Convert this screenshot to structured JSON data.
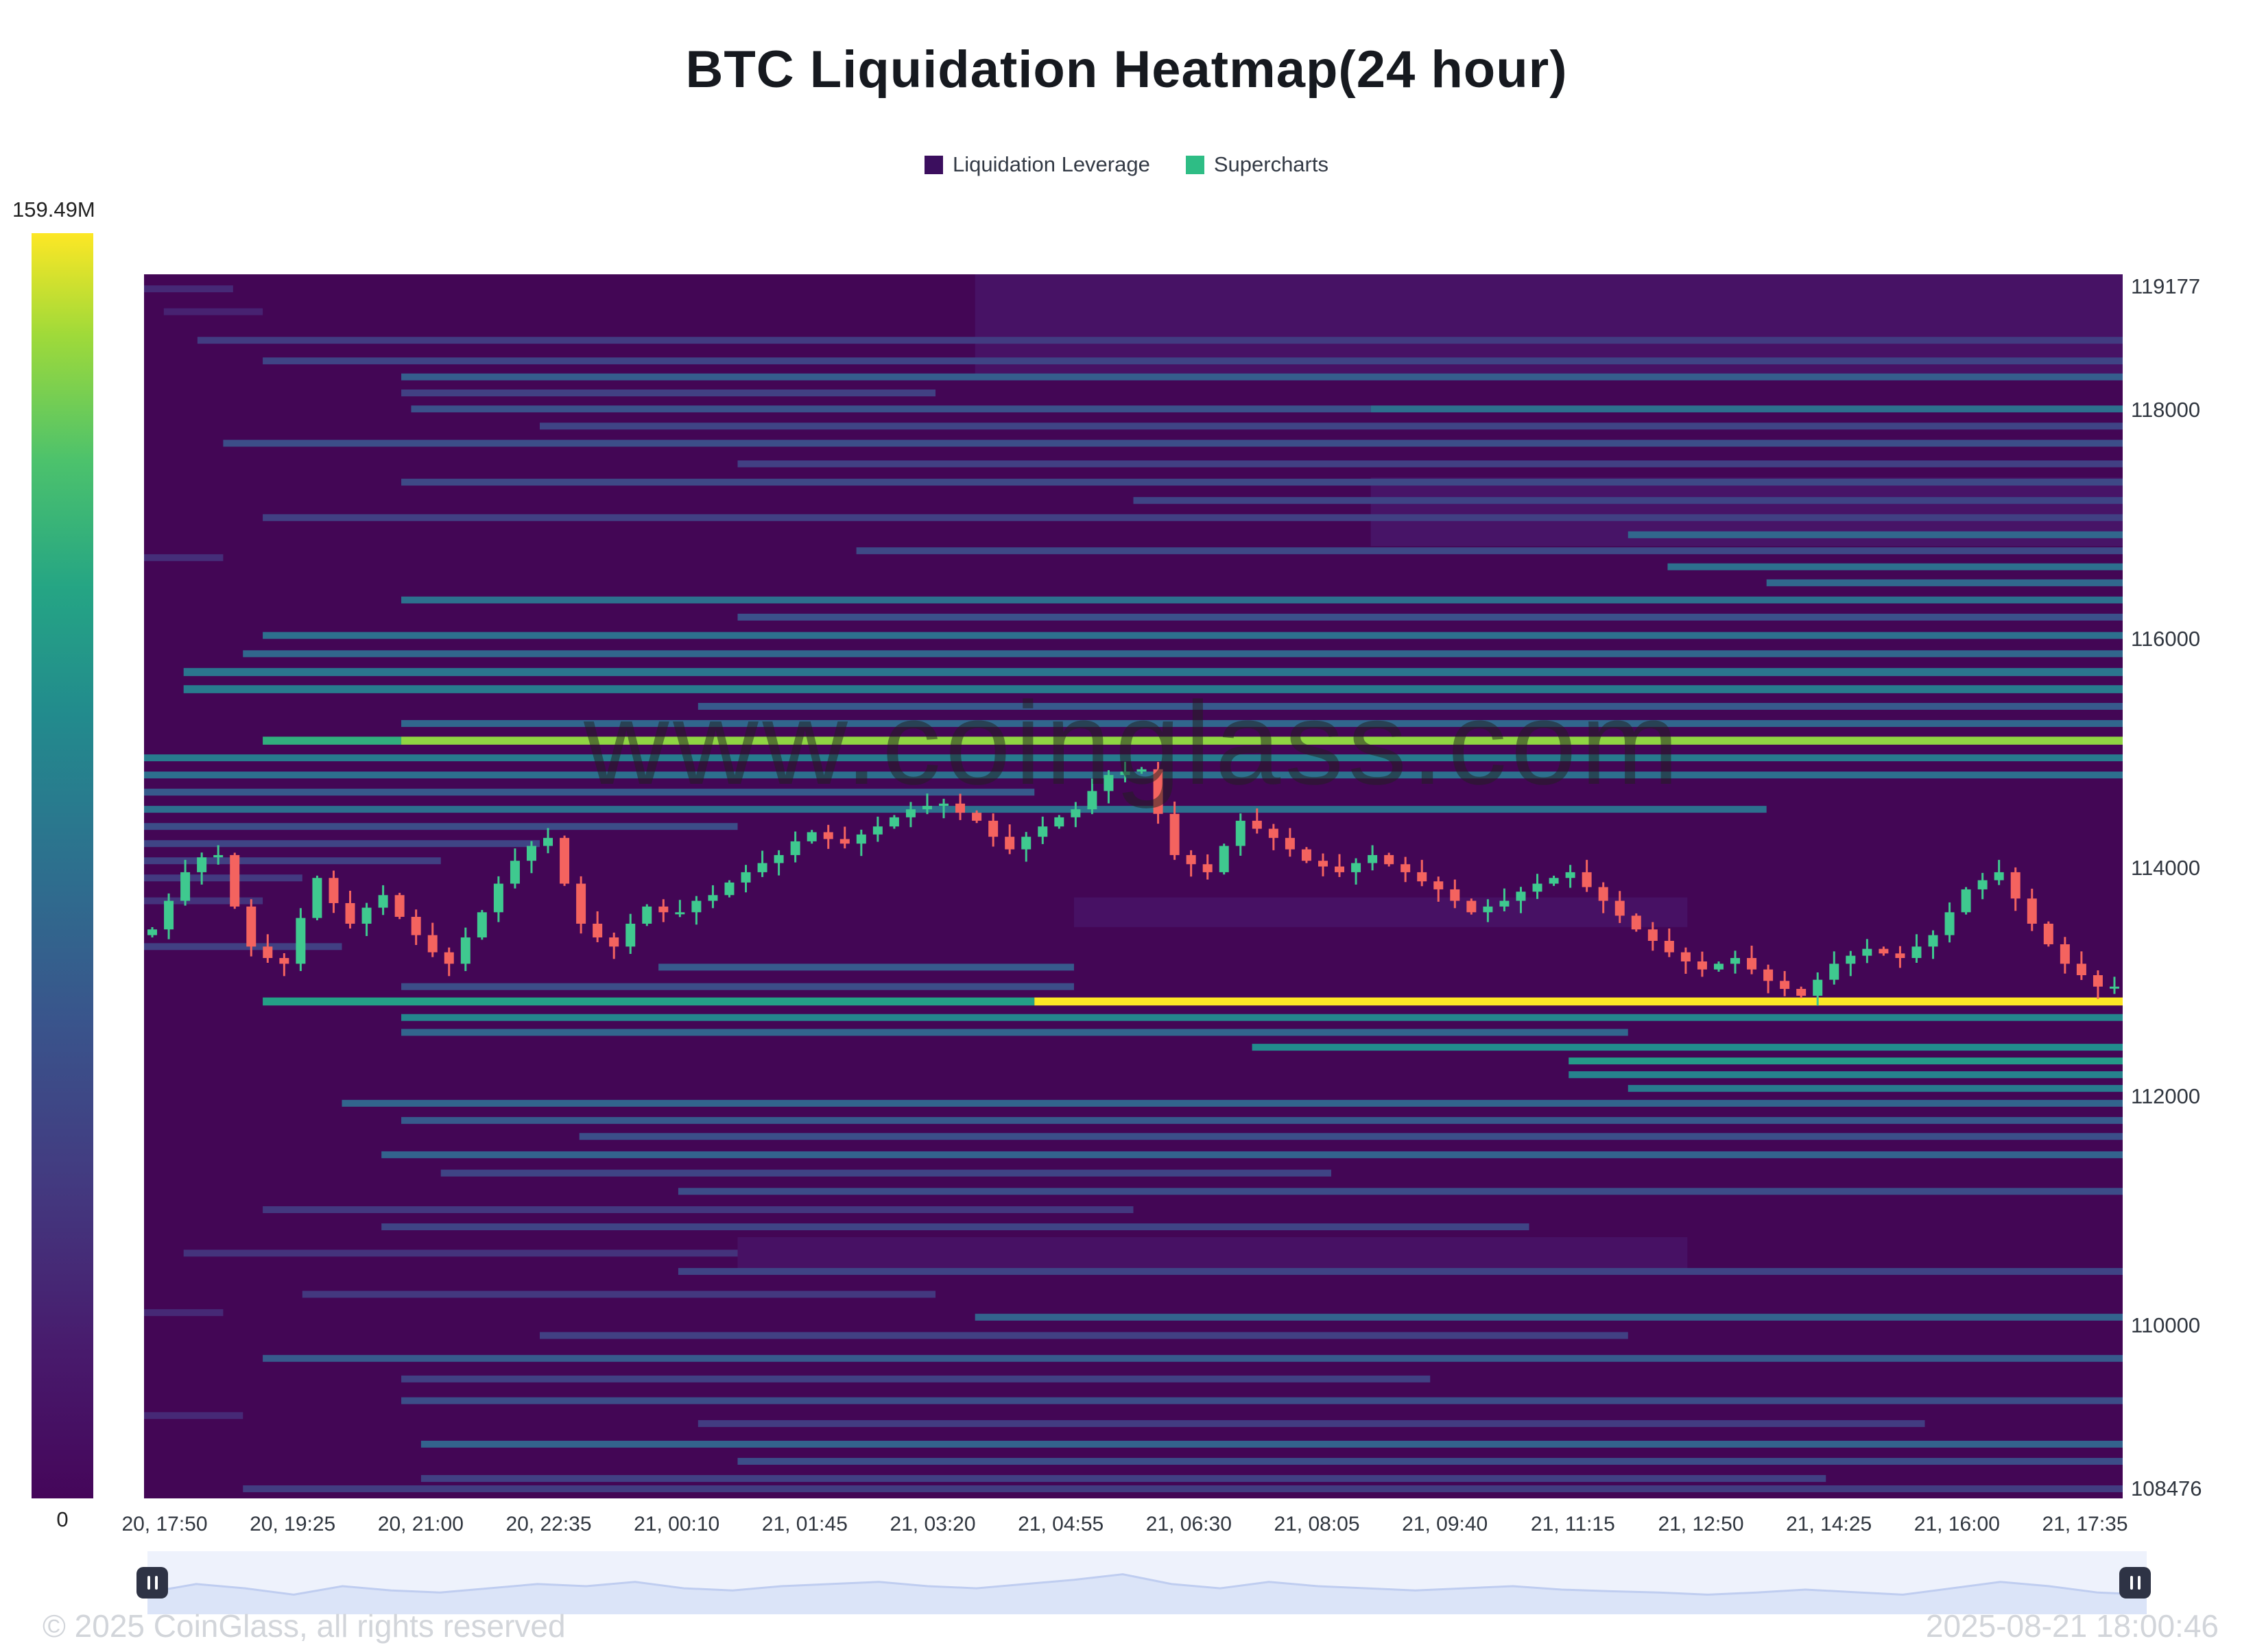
{
  "title": "BTC Liquidation Heatmap(24 hour)",
  "legend": [
    {
      "label": "Liquidation Leverage",
      "color": "#3b0e5e"
    },
    {
      "label": "Supercharts",
      "color": "#2ebd85"
    }
  ],
  "colorbar": {
    "max_label": "159.49M",
    "min_label": "0"
  },
  "watermark": "www.coinglass.com",
  "footer": {
    "copyright": "© 2025 CoinGlass, all rights reserved",
    "timestamp": "2025-08-21 18:00:46"
  },
  "chart_data": {
    "type": "heatmap",
    "title": "BTC Liquidation Heatmap(24 hour)",
    "bg_color": "#430655",
    "price_axis": {
      "min": 108476,
      "max": 119177,
      "ticks": [
        119177,
        118000,
        116000,
        114000,
        112000,
        110000,
        108476
      ]
    },
    "time_ticks": [
      "20, 17:50",
      "20, 19:25",
      "20, 21:00",
      "20, 22:35",
      "21, 00:10",
      "21, 01:45",
      "21, 03:20",
      "21, 04:55",
      "21, 06:30",
      "21, 08:05",
      "21, 09:40",
      "21, 11:15",
      "21, 12:50",
      "21, 14:25",
      "21, 16:00",
      "21, 17:35"
    ],
    "colormap": [
      [
        0,
        "#45065a"
      ],
      [
        0.12,
        "#481b6d"
      ],
      [
        0.25,
        "#433a80"
      ],
      [
        0.38,
        "#39558c"
      ],
      [
        0.5,
        "#2d708e"
      ],
      [
        0.62,
        "#228b8d"
      ],
      [
        0.72,
        "#25a584"
      ],
      [
        0.82,
        "#4cc26c"
      ],
      [
        0.92,
        "#a0da39"
      ],
      [
        1,
        "#fde725"
      ]
    ],
    "band_format": "[price_center, thickness_price, x_start_frac, x_end_frac, intensity_0to1]",
    "heatmap_bands": [
      [
        118750,
        900,
        0.42,
        1.0,
        0.07
      ],
      [
        117100,
        600,
        0.62,
        1.0,
        0.08
      ],
      [
        113600,
        260,
        0.47,
        0.78,
        0.06
      ],
      [
        110600,
        320,
        0.3,
        0.78,
        0.06
      ],
      [
        119050,
        60,
        0.0,
        0.045,
        0.18
      ],
      [
        118850,
        60,
        0.01,
        0.06,
        0.15
      ],
      [
        118600,
        60,
        0.027,
        1.0,
        0.26
      ],
      [
        118420,
        60,
        0.06,
        1.0,
        0.3
      ],
      [
        118280,
        60,
        0.13,
        1.0,
        0.42
      ],
      [
        118140,
        60,
        0.13,
        0.4,
        0.28
      ],
      [
        118000,
        60,
        0.135,
        0.62,
        0.36
      ],
      [
        118000,
        60,
        0.62,
        1.0,
        0.5
      ],
      [
        117850,
        60,
        0.2,
        1.0,
        0.3
      ],
      [
        117700,
        60,
        0.04,
        1.0,
        0.34
      ],
      [
        117520,
        60,
        0.3,
        1.0,
        0.28
      ],
      [
        117360,
        60,
        0.13,
        1.0,
        0.32
      ],
      [
        117200,
        60,
        0.5,
        1.0,
        0.3
      ],
      [
        117050,
        60,
        0.06,
        1.0,
        0.28
      ],
      [
        116900,
        60,
        0.75,
        1.0,
        0.46
      ],
      [
        116760,
        60,
        0.36,
        1.0,
        0.32
      ],
      [
        116700,
        60,
        0.0,
        0.04,
        0.2
      ],
      [
        116620,
        60,
        0.77,
        1.0,
        0.5
      ],
      [
        116480,
        60,
        0.82,
        1.0,
        0.46
      ],
      [
        116330,
        60,
        0.13,
        1.0,
        0.5
      ],
      [
        116180,
        60,
        0.3,
        1.0,
        0.36
      ],
      [
        116020,
        60,
        0.06,
        1.0,
        0.5
      ],
      [
        115860,
        60,
        0.05,
        1.0,
        0.46
      ],
      [
        115700,
        70,
        0.02,
        1.0,
        0.52
      ],
      [
        115550,
        70,
        0.02,
        1.0,
        0.55
      ],
      [
        115400,
        60,
        0.28,
        1.0,
        0.4
      ],
      [
        115250,
        60,
        0.13,
        1.0,
        0.46
      ],
      [
        115100,
        70,
        0.06,
        0.13,
        0.75
      ],
      [
        115100,
        70,
        0.13,
        1.0,
        0.9
      ],
      [
        114950,
        60,
        0.0,
        1.0,
        0.55
      ],
      [
        114800,
        60,
        0.0,
        1.0,
        0.5
      ],
      [
        114650,
        60,
        0.0,
        0.45,
        0.4
      ],
      [
        114500,
        60,
        0.0,
        0.82,
        0.5
      ],
      [
        114350,
        60,
        0.0,
        0.3,
        0.34
      ],
      [
        114200,
        60,
        0.0,
        0.2,
        0.3
      ],
      [
        114050,
        60,
        0.0,
        0.15,
        0.28
      ],
      [
        113900,
        60,
        0.0,
        0.08,
        0.25
      ],
      [
        113700,
        60,
        0.0,
        0.06,
        0.22
      ],
      [
        113300,
        60,
        0.0,
        0.1,
        0.28
      ],
      [
        113120,
        60,
        0.26,
        0.47,
        0.4
      ],
      [
        112950,
        60,
        0.13,
        0.47,
        0.34
      ],
      [
        112820,
        70,
        0.06,
        0.45,
        0.7
      ],
      [
        112820,
        70,
        0.45,
        1.0,
        1.0
      ],
      [
        112680,
        60,
        0.13,
        1.0,
        0.6
      ],
      [
        112550,
        60,
        0.13,
        0.75,
        0.45
      ],
      [
        112420,
        60,
        0.56,
        1.0,
        0.62
      ],
      [
        112300,
        60,
        0.72,
        1.0,
        0.68
      ],
      [
        112180,
        60,
        0.72,
        1.0,
        0.58
      ],
      [
        112060,
        60,
        0.75,
        1.0,
        0.55
      ],
      [
        111930,
        60,
        0.1,
        1.0,
        0.45
      ],
      [
        111780,
        60,
        0.13,
        1.0,
        0.4
      ],
      [
        111640,
        60,
        0.22,
        1.0,
        0.35
      ],
      [
        111480,
        60,
        0.12,
        1.0,
        0.44
      ],
      [
        111320,
        60,
        0.15,
        0.6,
        0.3
      ],
      [
        111160,
        60,
        0.27,
        1.0,
        0.34
      ],
      [
        111000,
        60,
        0.06,
        0.5,
        0.24
      ],
      [
        110850,
        60,
        0.12,
        0.7,
        0.3
      ],
      [
        110620,
        60,
        0.02,
        0.3,
        0.22
      ],
      [
        110460,
        60,
        0.27,
        1.0,
        0.3
      ],
      [
        110260,
        60,
        0.08,
        0.4,
        0.24
      ],
      [
        110100,
        60,
        0.0,
        0.04,
        0.18
      ],
      [
        110060,
        60,
        0.42,
        1.0,
        0.44
      ],
      [
        109900,
        60,
        0.2,
        0.75,
        0.28
      ],
      [
        109700,
        60,
        0.06,
        1.0,
        0.4
      ],
      [
        109520,
        60,
        0.13,
        0.65,
        0.28
      ],
      [
        109330,
        60,
        0.13,
        1.0,
        0.34
      ],
      [
        109200,
        60,
        0.0,
        0.05,
        0.18
      ],
      [
        109130,
        60,
        0.28,
        0.9,
        0.26
      ],
      [
        108950,
        60,
        0.14,
        1.0,
        0.44
      ],
      [
        108800,
        60,
        0.3,
        1.0,
        0.34
      ],
      [
        108650,
        60,
        0.14,
        0.85,
        0.28
      ],
      [
        108560,
        60,
        0.05,
        1.0,
        0.26
      ]
    ],
    "candles": {
      "up_color": "#3fc98f",
      "down_color": "#f4635f",
      "open_first": 113400,
      "closes": [
        113450,
        113700,
        113950,
        114080,
        114100,
        113650,
        113300,
        113200,
        113150,
        113550,
        113900,
        113680,
        113500,
        113640,
        113750,
        113560,
        113400,
        113250,
        113150,
        113380,
        113600,
        113850,
        114050,
        114180,
        114250,
        113850,
        113500,
        113380,
        113300,
        113500,
        113650,
        113600,
        113600,
        113700,
        113750,
        113860,
        113950,
        114030,
        114100,
        114220,
        114300,
        114240,
        114200,
        114280,
        114350,
        114430,
        114500,
        114530,
        114550,
        114470,
        114400,
        114260,
        114150,
        114260,
        114350,
        114430,
        114500,
        114660,
        114800,
        114830,
        114850,
        114460,
        114100,
        114020,
        113950,
        114180,
        114400,
        114330,
        114250,
        114150,
        114050,
        114000,
        113950,
        114030,
        114100,
        114020,
        113950,
        113870,
        113800,
        113700,
        113600,
        113650,
        113700,
        113780,
        113850,
        113900,
        113950,
        113820,
        113700,
        113570,
        113450,
        113350,
        113250,
        113170,
        113100,
        113150,
        113200,
        113100,
        113000,
        112930,
        112870,
        113010,
        113150,
        113220,
        113280,
        113240,
        113200,
        113300,
        113400,
        113600,
        113800,
        113880,
        113950,
        113720,
        113500,
        113320,
        113150,
        113050,
        112950,
        112950
      ]
    },
    "navigator": {
      "values": [
        0.35,
        0.55,
        0.45,
        0.3,
        0.5,
        0.4,
        0.35,
        0.45,
        0.55,
        0.5,
        0.6,
        0.45,
        0.4,
        0.5,
        0.55,
        0.6,
        0.5,
        0.45,
        0.55,
        0.65,
        0.78,
        0.55,
        0.45,
        0.6,
        0.5,
        0.45,
        0.4,
        0.45,
        0.5,
        0.42,
        0.38,
        0.35,
        0.3,
        0.35,
        0.42,
        0.36,
        0.3,
        0.45,
        0.6,
        0.5,
        0.35,
        0.3
      ]
    }
  }
}
